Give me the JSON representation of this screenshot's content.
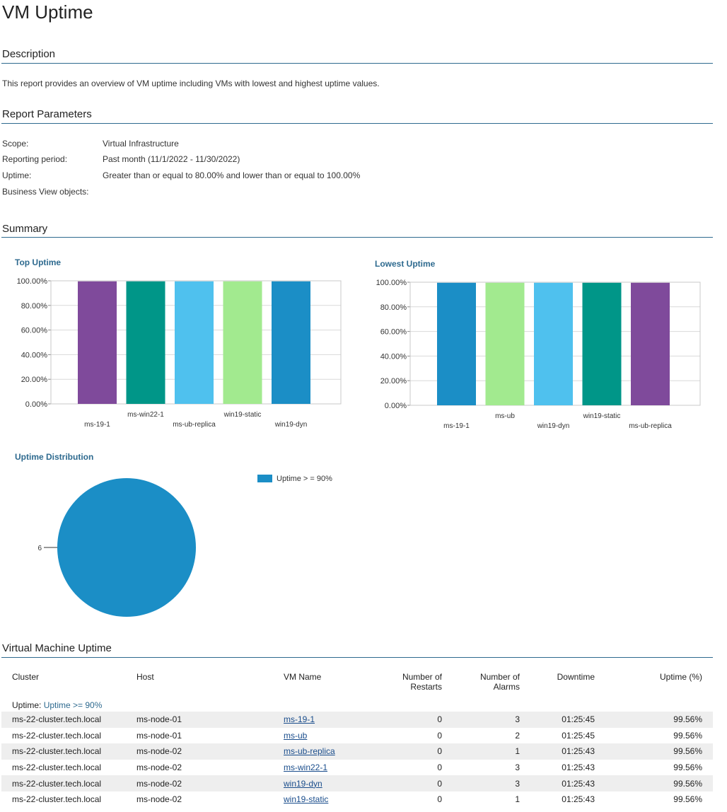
{
  "report": {
    "title": "VM Uptime"
  },
  "description": {
    "heading": "Description",
    "text": "This report provides an overview of VM uptime including VMs with lowest and highest uptime values."
  },
  "parameters": {
    "heading": "Report Parameters",
    "items": [
      {
        "label": "Scope:",
        "value": "Virtual Infrastructure"
      },
      {
        "label": "Reporting period:",
        "value": "Past month (11/1/2022 - 11/30/2022)"
      },
      {
        "label": "Uptime:",
        "value": "Greater than or equal to 80.00% and lower than or equal to 100.00%"
      },
      {
        "label": "Business View objects:",
        "value": ""
      }
    ]
  },
  "summary": {
    "heading": "Summary"
  },
  "colors": {
    "accent": "#2e6a8f",
    "purple": "#7f4a9b",
    "teal": "#009688",
    "lightblue": "#4fc1ee",
    "lightgreen": "#a2ea8f",
    "blue": "#1b8ec6"
  },
  "chart_data": [
    {
      "type": "bar",
      "title": "Top Uptime",
      "categories": [
        "ms-19-1",
        "ms-win22-1",
        "ms-ub-replica",
        "win19-static",
        "win19-dyn"
      ],
      "values": [
        99.56,
        99.56,
        99.56,
        99.56,
        99.56
      ],
      "bar_colors": [
        "#7f4a9b",
        "#009688",
        "#4fc1ee",
        "#a2ea8f",
        "#1b8ec6"
      ],
      "yticks": [
        "0.00%",
        "20.00%",
        "40.00%",
        "60.00%",
        "80.00%",
        "100.00%"
      ],
      "ylim": [
        0,
        100
      ],
      "grid": true
    },
    {
      "type": "bar",
      "title": "Lowest Uptime",
      "categories": [
        "ms-19-1",
        "ms-ub",
        "win19-dyn",
        "win19-static",
        "ms-ub-replica"
      ],
      "values": [
        99.56,
        99.56,
        99.56,
        99.56,
        99.56
      ],
      "bar_colors": [
        "#1b8ec6",
        "#a2ea8f",
        "#4fc1ee",
        "#009688",
        "#7f4a9b"
      ],
      "yticks": [
        "0.00%",
        "20.00%",
        "40.00%",
        "60.00%",
        "80.00%",
        "100.00%"
      ],
      "ylim": [
        0,
        100
      ],
      "grid": true
    },
    {
      "type": "pie",
      "title": "Uptime Distribution",
      "slices": [
        {
          "label": "Uptime >= 90%",
          "value": 6,
          "color": "#1b8ec6"
        }
      ],
      "data_label": "6",
      "legend_label": "Uptime > = 90%",
      "legend": "top-right"
    }
  ],
  "vm_uptime": {
    "heading": "Virtual Machine Uptime",
    "columns": {
      "cluster": "Cluster",
      "host": "Host",
      "vm_name": "VM Name",
      "restarts_line1": "Number of",
      "restarts_line2": "Restarts",
      "alarms_line1": "Number of",
      "alarms_line2": "Alarms",
      "downtime": "Downtime",
      "uptime": "Uptime (%)"
    },
    "group": {
      "label": "Uptime:",
      "value": "Uptime >= 90%"
    },
    "rows": [
      {
        "cluster": "ms-22-cluster.tech.local",
        "host": "ms-node-01",
        "vm": "ms-19-1",
        "restarts": "0",
        "alarms": "3",
        "downtime": "01:25:45",
        "uptime": "99.56%"
      },
      {
        "cluster": "ms-22-cluster.tech.local",
        "host": "ms-node-01",
        "vm": "ms-ub",
        "restarts": "0",
        "alarms": "2",
        "downtime": "01:25:45",
        "uptime": "99.56%"
      },
      {
        "cluster": "ms-22-cluster.tech.local",
        "host": "ms-node-02",
        "vm": "ms-ub-replica",
        "restarts": "0",
        "alarms": "1",
        "downtime": "01:25:43",
        "uptime": "99.56%"
      },
      {
        "cluster": "ms-22-cluster.tech.local",
        "host": "ms-node-02",
        "vm": "ms-win22-1",
        "restarts": "0",
        "alarms": "3",
        "downtime": "01:25:43",
        "uptime": "99.56%"
      },
      {
        "cluster": "ms-22-cluster.tech.local",
        "host": "ms-node-02",
        "vm": "win19-dyn",
        "restarts": "0",
        "alarms": "3",
        "downtime": "01:25:43",
        "uptime": "99.56%"
      },
      {
        "cluster": "ms-22-cluster.tech.local",
        "host": "ms-node-02",
        "vm": "win19-static",
        "restarts": "0",
        "alarms": "1",
        "downtime": "01:25:43",
        "uptime": "99.56%"
      }
    ]
  }
}
